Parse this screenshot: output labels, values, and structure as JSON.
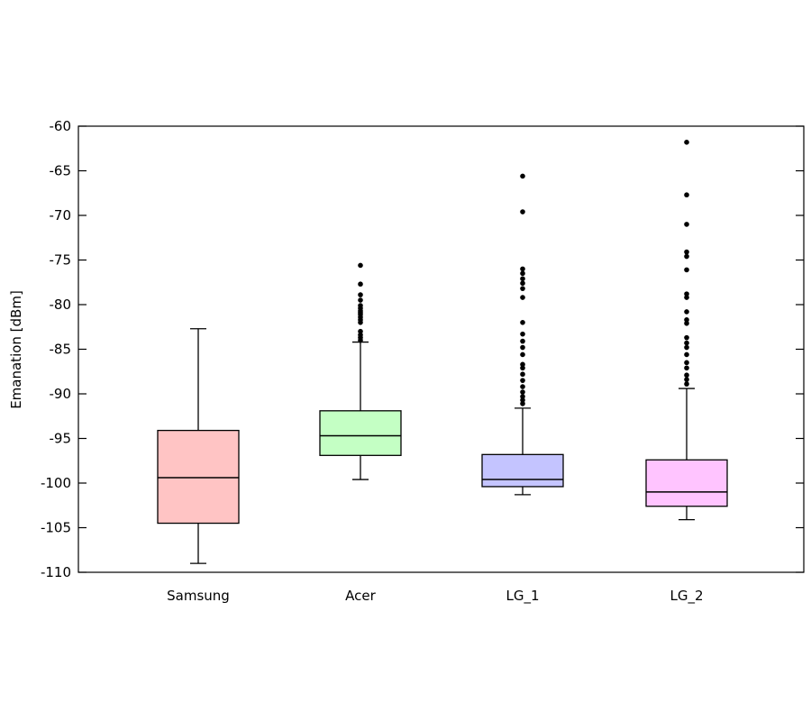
{
  "chart_data": {
    "type": "boxplot",
    "title": "",
    "xlabel": "",
    "ylabel": "Emanation [dBm]",
    "ylim": [
      -110,
      -60
    ],
    "yticks": [
      -60,
      -65,
      -70,
      -75,
      -80,
      -85,
      -90,
      -95,
      -100,
      -105,
      -110
    ],
    "grid": false,
    "series": [
      {
        "name": "Samsung",
        "color": "#ffc4c4",
        "whisker_low": -109,
        "q1": -104.5,
        "median": -99.4,
        "q3": -94.1,
        "whisker_high": -82.7,
        "outliers": []
      },
      {
        "name": "Acer",
        "color": "#c4ffc4",
        "whisker_low": -99.6,
        "q1": -96.9,
        "median": -94.7,
        "q3": -91.9,
        "whisker_high": -84.2,
        "outliers": [
          -75.6,
          -77.7,
          -78.9,
          -79.5,
          -80.1,
          -80.4,
          -80.7,
          -80.9,
          -81.1,
          -81.4,
          -81.7,
          -82.0,
          -83.0,
          -83.4,
          -83.7,
          -84.0
        ]
      },
      {
        "name": "LG_1",
        "color": "#c4c4ff",
        "whisker_low": -101.3,
        "q1": -100.4,
        "median": -99.6,
        "q3": -96.8,
        "whisker_high": -91.6,
        "outliers": [
          -65.6,
          -69.6,
          -76.0,
          -76.5,
          -77.1,
          -77.6,
          -78.2,
          -79.2,
          -82.0,
          -83.3,
          -84.1,
          -84.8,
          -85.6,
          -86.7,
          -87.1,
          -87.8,
          -88.5,
          -89.2,
          -89.8,
          -90.3,
          -90.7,
          -91.1
        ]
      },
      {
        "name": "LG_2",
        "color": "#ffc4ff",
        "whisker_low": -104.1,
        "q1": -102.6,
        "median": -101.0,
        "q3": -97.4,
        "whisker_high": -89.4,
        "outliers": [
          -61.8,
          -67.7,
          -71.0,
          -74.1,
          -74.6,
          -76.1,
          -78.8,
          -79.2,
          -80.8,
          -81.7,
          -82.1,
          -83.7,
          -84.3,
          -84.8,
          -85.6,
          -86.5,
          -87.1,
          -87.9,
          -88.4,
          -88.9
        ]
      }
    ]
  }
}
